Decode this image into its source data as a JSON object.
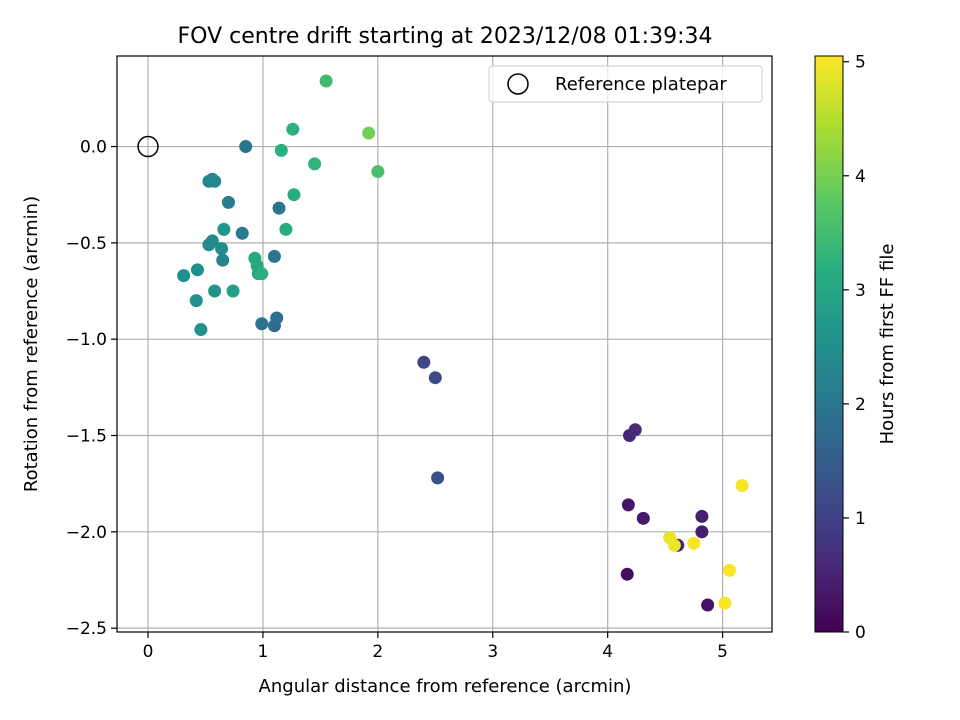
{
  "chart_data": {
    "type": "scatter",
    "title": "FOV centre drift starting at 2023/12/08 01:39:34",
    "xlabel": "Angular distance from reference (arcmin)",
    "ylabel": "Rotation from reference (arcmin)",
    "colorbar_label": "Hours from first FF file",
    "xlim": [
      -0.27,
      5.43
    ],
    "ylim": [
      -2.52,
      0.47
    ],
    "clim": [
      0,
      5.05
    ],
    "x_ticks": [
      0,
      1,
      2,
      3,
      4,
      5
    ],
    "x_tick_labels": [
      "0",
      "1",
      "2",
      "3",
      "4",
      "5"
    ],
    "y_ticks": [
      0.0,
      -0.5,
      -1.0,
      -1.5,
      -2.0,
      -2.5
    ],
    "y_tick_labels": [
      "0.0",
      "−0.5",
      "−1.0",
      "−1.5",
      "−2.0",
      "−2.5"
    ],
    "c_ticks": [
      0,
      1,
      2,
      3,
      4,
      5
    ],
    "c_tick_labels": [
      "0",
      "1",
      "2",
      "3",
      "4",
      "5"
    ],
    "grid": true,
    "colormap": "viridis",
    "legend": {
      "position": "top-right",
      "label": "Reference platepar",
      "marker": "open-circle"
    },
    "reference": {
      "x": 0,
      "y": 0
    },
    "points": [
      {
        "x": 4.17,
        "y": -2.22,
        "hours": 0.2
      },
      {
        "x": 4.87,
        "y": -2.38,
        "hours": 0.25
      },
      {
        "x": 4.18,
        "y": -1.86,
        "hours": 0.3
      },
      {
        "x": 4.31,
        "y": -1.93,
        "hours": 0.35
      },
      {
        "x": 4.82,
        "y": -2.0,
        "hours": 0.4
      },
      {
        "x": 4.82,
        "y": -1.92,
        "hours": 0.45
      },
      {
        "x": 4.61,
        "y": -2.07,
        "hours": 0.5
      },
      {
        "x": 4.19,
        "y": -1.5,
        "hours": 0.55
      },
      {
        "x": 4.24,
        "y": -1.47,
        "hours": 0.6
      },
      {
        "x": 2.4,
        "y": -1.12,
        "hours": 1.05
      },
      {
        "x": 2.5,
        "y": -1.2,
        "hours": 1.15
      },
      {
        "x": 2.52,
        "y": -1.72,
        "hours": 1.25
      },
      {
        "x": 1.1,
        "y": -0.93,
        "hours": 1.8
      },
      {
        "x": 1.12,
        "y": -0.89,
        "hours": 1.85
      },
      {
        "x": 0.99,
        "y": -0.92,
        "hours": 1.9
      },
      {
        "x": 1.14,
        "y": -0.32,
        "hours": 1.95
      },
      {
        "x": 0.85,
        "y": 0.0,
        "hours": 2.0
      },
      {
        "x": 1.1,
        "y": -0.57,
        "hours": 2.0
      },
      {
        "x": 0.82,
        "y": -0.45,
        "hours": 2.1
      },
      {
        "x": 0.7,
        "y": -0.29,
        "hours": 2.15
      },
      {
        "x": 0.58,
        "y": -0.18,
        "hours": 2.25
      },
      {
        "x": 0.53,
        "y": -0.18,
        "hours": 2.3
      },
      {
        "x": 0.56,
        "y": -0.17,
        "hours": 2.35
      },
      {
        "x": 0.65,
        "y": -0.59,
        "hours": 2.3
      },
      {
        "x": 0.53,
        "y": -0.51,
        "hours": 2.4
      },
      {
        "x": 0.56,
        "y": -0.49,
        "hours": 2.45
      },
      {
        "x": 0.64,
        "y": -0.53,
        "hours": 2.45
      },
      {
        "x": 0.31,
        "y": -0.67,
        "hours": 2.5
      },
      {
        "x": 0.43,
        "y": -0.64,
        "hours": 2.5
      },
      {
        "x": 0.42,
        "y": -0.8,
        "hours": 2.55
      },
      {
        "x": 0.58,
        "y": -0.75,
        "hours": 2.6
      },
      {
        "x": 0.46,
        "y": -0.95,
        "hours": 2.6
      },
      {
        "x": 0.66,
        "y": -0.43,
        "hours": 2.65
      },
      {
        "x": 0.74,
        "y": -0.75,
        "hours": 2.85
      },
      {
        "x": 0.96,
        "y": -0.66,
        "hours": 2.95
      },
      {
        "x": 0.93,
        "y": -0.58,
        "hours": 3.05
      },
      {
        "x": 0.95,
        "y": -0.62,
        "hours": 3.1
      },
      {
        "x": 0.99,
        "y": -0.66,
        "hours": 3.2
      },
      {
        "x": 1.2,
        "y": -0.43,
        "hours": 3.15
      },
      {
        "x": 1.27,
        "y": -0.25,
        "hours": 3.15
      },
      {
        "x": 1.16,
        "y": -0.02,
        "hours": 3.2
      },
      {
        "x": 1.26,
        "y": 0.09,
        "hours": 3.25
      },
      {
        "x": 1.45,
        "y": -0.09,
        "hours": 3.3
      },
      {
        "x": 1.55,
        "y": 0.34,
        "hours": 3.45
      },
      {
        "x": 2.0,
        "y": -0.13,
        "hours": 3.55
      },
      {
        "x": 1.92,
        "y": 0.07,
        "hours": 3.95
      },
      {
        "x": 4.54,
        "y": -2.03,
        "hours": 4.9
      },
      {
        "x": 4.58,
        "y": -2.07,
        "hours": 4.95
      },
      {
        "x": 4.75,
        "y": -2.06,
        "hours": 5.0
      },
      {
        "x": 5.02,
        "y": -2.37,
        "hours": 5.0
      },
      {
        "x": 5.06,
        "y": -2.2,
        "hours": 5.0
      },
      {
        "x": 5.17,
        "y": -1.76,
        "hours": 5.0
      }
    ]
  }
}
